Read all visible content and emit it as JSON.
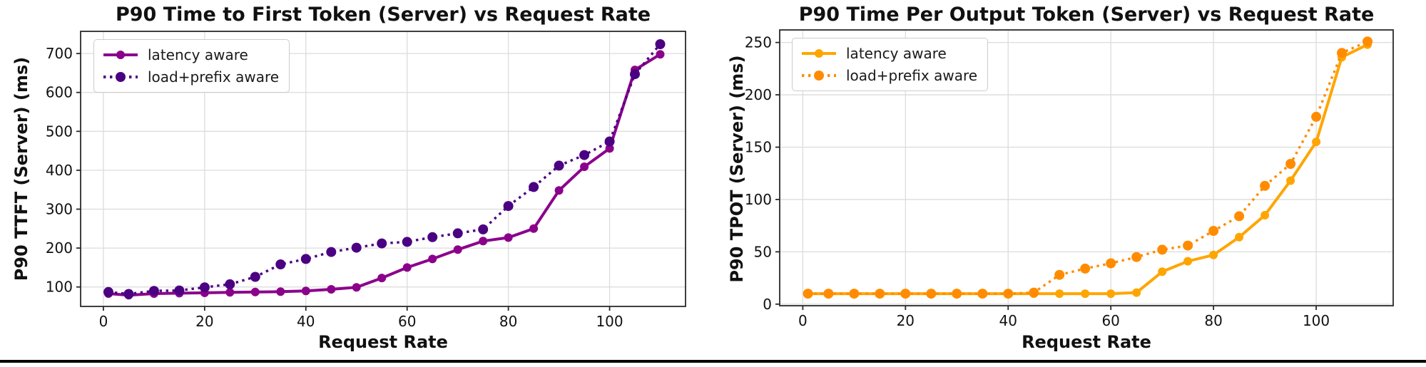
{
  "page": {
    "background_color": "#ffffff",
    "bottom_rule_color": "#000000",
    "grid_color": "#dcdcdc",
    "axes_frame_color": "#2a2a2a"
  },
  "chart_data": [
    {
      "type": "line",
      "title": "P90 Time to First Token (Server) vs Request Rate",
      "xlabel": "Request Rate",
      "ylabel": "P90 TTFT (Server) (ms)",
      "x": [
        1,
        5,
        10,
        15,
        20,
        25,
        30,
        35,
        40,
        45,
        50,
        55,
        60,
        65,
        70,
        75,
        80,
        85,
        90,
        95,
        100,
        105,
        110
      ],
      "xticks": [
        0,
        20,
        40,
        60,
        80,
        100
      ],
      "yticks": [
        100,
        200,
        300,
        400,
        500,
        600,
        700
      ],
      "xlim": [
        -4.5,
        115
      ],
      "ylim": [
        50,
        757
      ],
      "grid": true,
      "legend_position": "upper left",
      "series": [
        {
          "name": "latency aware",
          "line_style": "solid",
          "marker": "circle",
          "color": "#8B008B",
          "values": [
            83,
            79,
            83,
            84,
            85,
            86,
            87,
            88,
            90,
            94,
            99,
            123,
            150,
            172,
            196,
            218,
            227,
            250,
            348,
            409,
            456,
            658,
            698
          ]
        },
        {
          "name": "load+prefix aware",
          "line_style": "dotted",
          "marker": "circle",
          "color": "#4B0082",
          "values": [
            87,
            82,
            90,
            91,
            99,
            107,
            126,
            158,
            172,
            190,
            201,
            212,
            216,
            228,
            238,
            248,
            308,
            357,
            412,
            439,
            474,
            647,
            724
          ]
        }
      ]
    },
    {
      "type": "line",
      "title": "P90 Time Per Output Token (Server) vs Request Rate",
      "xlabel": "Request Rate",
      "ylabel": "P90 TPOT (Server) (ms)",
      "x": [
        1,
        5,
        10,
        15,
        20,
        25,
        30,
        35,
        40,
        45,
        50,
        55,
        60,
        65,
        70,
        75,
        80,
        85,
        90,
        95,
        100,
        105,
        110
      ],
      "xticks": [
        0,
        20,
        40,
        60,
        80,
        100
      ],
      "yticks": [
        0,
        50,
        100,
        150,
        200,
        250
      ],
      "xlim": [
        -4.5,
        115
      ],
      "ylim": [
        -1.5,
        262
      ],
      "grid": true,
      "legend_position": "upper left",
      "series": [
        {
          "name": "latency aware",
          "line_style": "solid",
          "marker": "circle",
          "color": "#FFA500",
          "values": [
            10,
            10,
            10,
            10,
            10,
            10,
            10,
            10,
            10,
            10,
            10,
            10,
            10,
            11,
            31,
            41,
            47,
            64,
            85,
            118,
            155,
            236,
            248
          ]
        },
        {
          "name": "load+prefix aware",
          "line_style": "dotted",
          "marker": "circle",
          "color": "#FF8C00",
          "values": [
            10,
            10,
            10,
            10,
            10,
            10,
            10,
            10,
            10,
            11,
            28,
            34,
            39,
            45,
            52,
            56,
            70,
            84,
            113,
            134,
            179,
            240,
            251
          ]
        }
      ]
    }
  ]
}
